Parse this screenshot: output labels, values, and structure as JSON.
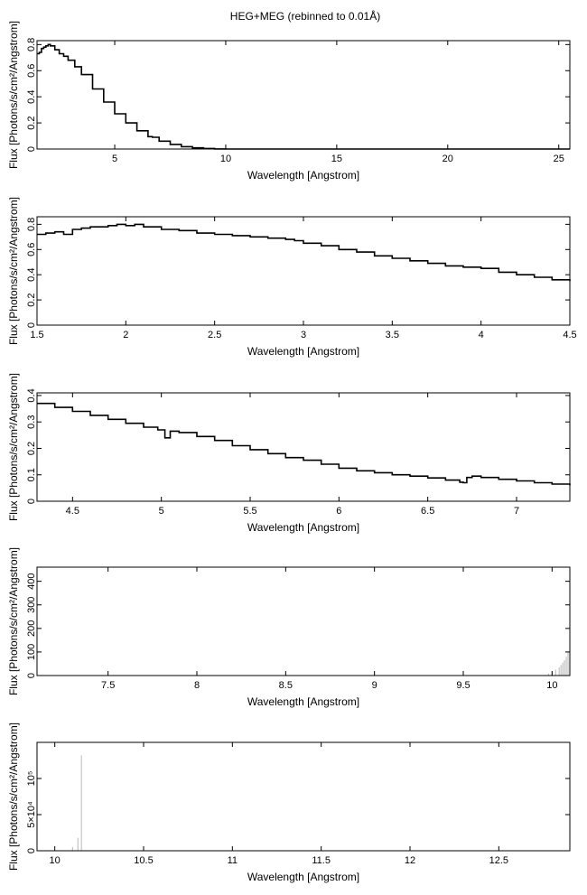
{
  "title": "HEG+MEG (rebinned to 0.01Å)",
  "chart_data": [
    {
      "type": "line",
      "xlabel": "Wavelength [Angstrom]",
      "ylabel": "Flux [Photons/s/cm²/Angstrom]",
      "xlim": [
        1.5,
        25.5
      ],
      "ylim": [
        0,
        0.83
      ],
      "xticks": [
        5,
        10,
        15,
        20,
        25
      ],
      "xtick_labels": [
        "5",
        "10",
        "15",
        "20",
        "25"
      ],
      "yticks": [
        0,
        0.2,
        0.4,
        0.6,
        0.8
      ],
      "ytick_labels": [
        "0",
        "0.2",
        "0.4",
        "0.6",
        "0.8"
      ],
      "series": [
        {
          "x": [
            1.5,
            1.6,
            1.7,
            1.8,
            1.9,
            2.0,
            2.1,
            2.3,
            2.5,
            2.7,
            2.9,
            3.2,
            3.5,
            4.0,
            4.5,
            5.0,
            5.5,
            6.0,
            6.5,
            6.7,
            7.0,
            7.5,
            8.0,
            8.5,
            9.0,
            9.5,
            10.0,
            12.0,
            15.0,
            20.0,
            25.5
          ],
          "y": [
            0.73,
            0.74,
            0.77,
            0.78,
            0.79,
            0.8,
            0.79,
            0.76,
            0.73,
            0.71,
            0.68,
            0.63,
            0.57,
            0.46,
            0.36,
            0.27,
            0.2,
            0.14,
            0.095,
            0.09,
            0.06,
            0.035,
            0.018,
            0.009,
            0.004,
            0.001,
            0.0,
            0.0,
            0.0,
            0.0,
            0.0
          ]
        }
      ]
    },
    {
      "type": "line",
      "xlabel": "Wavelength [Angstrom]",
      "ylabel": "Flux [Photons/s/cm²/Angstrom]",
      "xlim": [
        1.5,
        4.5
      ],
      "ylim": [
        0,
        0.86
      ],
      "xticks": [
        1.5,
        2,
        2.5,
        3,
        3.5,
        4,
        4.5
      ],
      "xtick_labels": [
        "1.5",
        "2",
        "2.5",
        "3",
        "3.5",
        "4",
        "4.5"
      ],
      "yticks": [
        0,
        0.2,
        0.4,
        0.6,
        0.8
      ],
      "ytick_labels": [
        "0",
        "0.2",
        "0.4",
        "0.6",
        "0.8"
      ],
      "series": [
        {
          "x": [
            1.5,
            1.55,
            1.6,
            1.65,
            1.7,
            1.75,
            1.8,
            1.85,
            1.9,
            1.95,
            2.0,
            2.05,
            2.1,
            2.2,
            2.3,
            2.4,
            2.5,
            2.6,
            2.7,
            2.8,
            2.9,
            2.95,
            3.0,
            3.1,
            3.2,
            3.3,
            3.4,
            3.5,
            3.6,
            3.7,
            3.8,
            3.9,
            4.0,
            4.1,
            4.2,
            4.3,
            4.4,
            4.5
          ],
          "y": [
            0.72,
            0.73,
            0.74,
            0.72,
            0.76,
            0.77,
            0.78,
            0.78,
            0.79,
            0.8,
            0.79,
            0.8,
            0.78,
            0.76,
            0.75,
            0.73,
            0.72,
            0.71,
            0.7,
            0.69,
            0.68,
            0.67,
            0.65,
            0.63,
            0.6,
            0.58,
            0.55,
            0.53,
            0.51,
            0.49,
            0.47,
            0.46,
            0.45,
            0.42,
            0.4,
            0.38,
            0.36,
            0.35
          ]
        }
      ]
    },
    {
      "type": "line",
      "xlabel": "Wavelength [Angstrom]",
      "ylabel": "Flux [Photons/s/cm²/Angstrom]",
      "xlim": [
        4.3,
        7.3
      ],
      "ylim": [
        0,
        0.41
      ],
      "xticks": [
        4.5,
        5,
        5.5,
        6,
        6.5,
        7
      ],
      "xtick_labels": [
        "4.5",
        "5",
        "5.5",
        "6",
        "6.5",
        "7"
      ],
      "yticks": [
        0,
        0.1,
        0.2,
        0.3,
        0.4
      ],
      "ytick_labels": [
        "0",
        "0.1",
        "0.2",
        "0.3",
        "0.4"
      ],
      "series": [
        {
          "x": [
            4.3,
            4.4,
            4.5,
            4.6,
            4.7,
            4.8,
            4.9,
            4.98,
            5.02,
            5.05,
            5.1,
            5.2,
            5.3,
            5.4,
            5.5,
            5.6,
            5.7,
            5.8,
            5.9,
            6.0,
            6.1,
            6.2,
            6.3,
            6.4,
            6.5,
            6.6,
            6.68,
            6.7,
            6.72,
            6.75,
            6.8,
            6.9,
            7.0,
            7.1,
            7.2,
            7.3
          ],
          "y": [
            0.37,
            0.355,
            0.34,
            0.325,
            0.31,
            0.295,
            0.28,
            0.27,
            0.24,
            0.265,
            0.26,
            0.245,
            0.23,
            0.21,
            0.195,
            0.18,
            0.165,
            0.155,
            0.14,
            0.125,
            0.115,
            0.108,
            0.1,
            0.095,
            0.088,
            0.08,
            0.072,
            0.07,
            0.09,
            0.095,
            0.09,
            0.083,
            0.077,
            0.07,
            0.065,
            0.06
          ]
        }
      ]
    },
    {
      "type": "bar",
      "xlabel": "Wavelength [Angstrom]",
      "ylabel": "Flux [Photons/s/cm²/Angstrom]",
      "xlim": [
        7.1,
        10.1
      ],
      "ylim": [
        0,
        460
      ],
      "xticks": [
        7.5,
        8,
        8.5,
        9,
        9.5,
        10
      ],
      "xtick_labels": [
        "7.5",
        "8",
        "8.5",
        "9",
        "9.5",
        "10"
      ],
      "yticks": [
        0,
        100,
        200,
        300,
        400
      ],
      "ytick_labels": [
        "0",
        "100",
        "200",
        "300",
        "400"
      ],
      "series": [
        {
          "x": [
            9.98,
            10.0,
            10.02,
            10.04,
            10.05,
            10.06,
            10.07,
            10.08,
            10.09,
            10.1
          ],
          "y": [
            8,
            15,
            25,
            35,
            45,
            55,
            65,
            80,
            100,
            130
          ]
        }
      ]
    },
    {
      "type": "bar",
      "xlabel": "Wavelength [Angstrom]",
      "ylabel": "Flux [Photons/s/cm²/Angstrom]",
      "xlim": [
        9.9,
        12.9
      ],
      "ylim": [
        0,
        150000
      ],
      "xticks": [
        10,
        10.5,
        11,
        11.5,
        12,
        12.5
      ],
      "xtick_labels": [
        "10",
        "10.5",
        "11",
        "11.5",
        "12",
        "12.5"
      ],
      "yticks": [
        0,
        50000,
        100000
      ],
      "ytick_labels": [
        "0",
        "5×10⁴",
        "10⁵"
      ],
      "series": [
        {
          "x": [
            10.1,
            10.13,
            10.15
          ],
          "y": [
            5000,
            18000,
            132000
          ]
        }
      ]
    }
  ]
}
